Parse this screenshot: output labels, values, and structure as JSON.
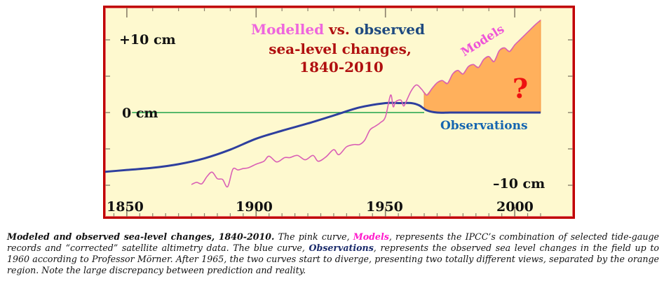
{
  "chart_data": {
    "type": "line",
    "title_parts": [
      {
        "text": "Modelled",
        "color": "#ee66dd"
      },
      {
        "text": " vs. ",
        "color": "#b01010"
      },
      {
        "text": "observed",
        "color": "#1f4a80"
      }
    ],
    "title_line2": "sea-level changes,",
    "title_line3": "1840-2010",
    "title_color": "#b01010",
    "xlim": [
      1840,
      2010
    ],
    "ylim": [
      -12,
      14
    ],
    "x_ticks": [
      1850,
      1900,
      1950,
      2000
    ],
    "x_tick_labels": [
      "1850",
      "1900",
      "1950",
      "2000"
    ],
    "y_labels": [
      {
        "value": 10,
        "text": "+10 cm"
      },
      {
        "value": 0,
        "text": "0 cm"
      },
      {
        "value": -10,
        "text": "–10 cm"
      }
    ],
    "reference_line": {
      "value": 0,
      "from": 1852,
      "to": 1965,
      "color": "#1fa34a"
    },
    "series": [
      {
        "name": "Observations",
        "color": "#2e3f9e",
        "label_color": "#1565b0",
        "x": [
          1840,
          1850,
          1860,
          1870,
          1880,
          1890,
          1900,
          1910,
          1920,
          1930,
          1940,
          1950,
          1955,
          1960,
          1963,
          1966,
          1970,
          1975,
          1980,
          1990,
          2000,
          2010
        ],
        "y": [
          -8.2,
          -7.9,
          -7.6,
          -7.1,
          -6.3,
          -5.1,
          -3.6,
          -2.5,
          -1.5,
          -0.4,
          0.7,
          1.3,
          1.3,
          1.3,
          1.0,
          0.3,
          0.0,
          0.0,
          0.0,
          0.0,
          0.0,
          0.0
        ]
      },
      {
        "name": "Models",
        "color": "#d95fb5",
        "label_color": "#ee55d8",
        "x": [
          1875,
          1877,
          1879,
          1881,
          1883,
          1885,
          1887,
          1889,
          1891,
          1893,
          1895,
          1897,
          1900,
          1903,
          1905,
          1908,
          1911,
          1913,
          1916,
          1919,
          1922,
          1924,
          1927,
          1930,
          1932,
          1935,
          1938,
          1940,
          1942,
          1944,
          1946,
          1948,
          1950,
          1952,
          1953,
          1954,
          1956,
          1957,
          1958,
          1960,
          1962,
          1964,
          1966,
          1968,
          1970,
          1972,
          1974,
          1976,
          1978,
          1980,
          1982,
          1984,
          1986,
          1988,
          1990,
          1992,
          1994,
          1996,
          1998,
          2000,
          2002,
          2004,
          2006,
          2008,
          2010
        ],
        "y": [
          -9.9,
          -9.6,
          -9.8,
          -8.8,
          -8.2,
          -9.1,
          -9.2,
          -10.2,
          -7.8,
          -7.9,
          -7.7,
          -7.6,
          -7.1,
          -6.7,
          -6.0,
          -6.8,
          -6.2,
          -6.2,
          -5.9,
          -6.5,
          -5.9,
          -6.7,
          -6.1,
          -5.1,
          -5.8,
          -4.7,
          -4.4,
          -4.4,
          -3.8,
          -2.4,
          -1.9,
          -1.4,
          -0.6,
          2.4,
          0.8,
          1.5,
          1.7,
          0.9,
          1.5,
          3.0,
          3.8,
          3.2,
          2.4,
          3.3,
          4.1,
          4.4,
          4.0,
          5.3,
          5.8,
          5.3,
          6.3,
          6.6,
          6.2,
          7.3,
          7.7,
          7.0,
          8.5,
          8.9,
          8.4,
          9.3,
          10.0,
          10.7,
          11.4,
          12.1,
          12.7
        ]
      }
    ],
    "divergence": {
      "from": 1965,
      "to": 2010,
      "fill_color": "#ffb05c",
      "label": "?",
      "label_color": "#ee1111"
    },
    "annotations": {
      "models_label": "Models",
      "observations_label": "Observations"
    }
  },
  "caption": {
    "bold_lead": "Modeled and observed sea-level changes, 1840-2010.",
    "text1": " The pink curve, ",
    "models": "Models",
    "text2": ", represents the IPCC’s combination of selected tide-gauge records and “corrected” satellite altimetry data. The blue curve, ",
    "observations": "Observations",
    "text3": ", represents the observed sea level changes in the field up to 1960 according to Professor Mörner. After 1965, the two curves start to diverge, presenting two totally different views, separated by the orange region. Note the large discrepancy between prediction and reality."
  }
}
